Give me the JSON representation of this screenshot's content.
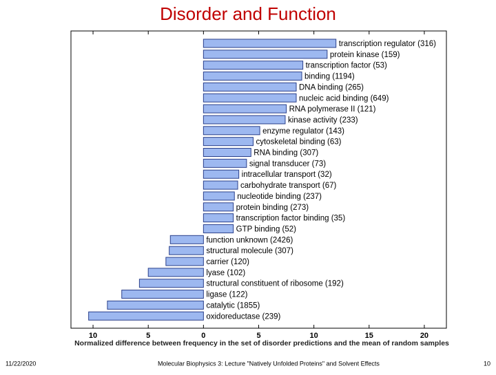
{
  "chart_data": {
    "type": "bar",
    "orientation": "horizontal",
    "title": "Disorder and Function",
    "xlabel": "Normalized difference between frequency in the set of disorder predictions and the mean of random samples",
    "categories": [
      "transcription regulator (316)",
      "protein kinase (159)",
      "transcription factor (53)",
      "binding (1194)",
      "DNA binding (265)",
      "nucleic acid binding (649)",
      "RNA polymerase II (121)",
      "kinase activity (233)",
      "enzyme regulator (143)",
      "cytoskeletal binding (63)",
      "RNA binding (307)",
      "signal transducer (73)",
      "intracellular transport (32)",
      "carbohydrate transport (67)",
      "nucleotide binding (237)",
      "protein binding (273)",
      "transcription factor binding (35)",
      "GTP binding (52)",
      "function unknown (2426)",
      "structural molecule (307)",
      "carrier (120)",
      "lyase (102)",
      "structural constituent of ribosome (192)",
      "ligase (122)",
      "catalytic (1855)",
      "oxidoreductase (239)"
    ],
    "values": [
      12.0,
      11.2,
      9.0,
      8.9,
      8.4,
      8.4,
      7.5,
      7.4,
      5.1,
      4.5,
      4.3,
      3.9,
      3.2,
      3.1,
      2.8,
      2.7,
      2.7,
      2.7,
      -3.0,
      -3.1,
      -3.4,
      -5.0,
      -5.8,
      -7.4,
      -8.7,
      -10.4
    ],
    "color": "#9db8f0",
    "xlim": [
      -12,
      22
    ],
    "xticks": [
      {
        "value": -10,
        "label": "10"
      },
      {
        "value": -5,
        "label": "5"
      },
      0,
      5,
      10,
      15,
      20
    ]
  },
  "footer": {
    "date": "11/22/2020",
    "text": "Molecular Biophysics 3: Lecture \"Natively Unfolded Proteins\" and Solvent Effects",
    "page": "10"
  }
}
